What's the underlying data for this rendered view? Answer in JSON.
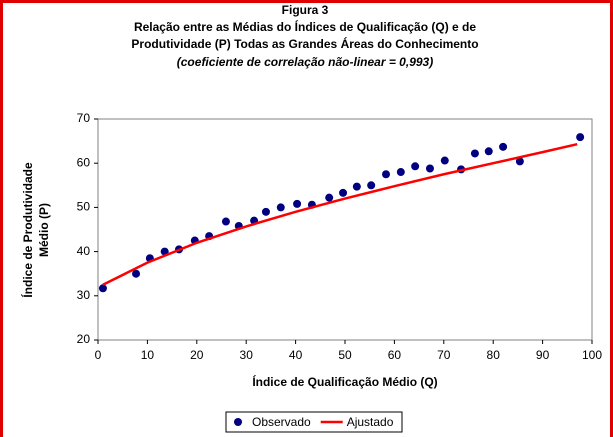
{
  "chart_data": {
    "type": "scatter",
    "title": "Figura 3",
    "subtitle": [
      "Relação entre as Médias do Índices de Qualificação (Q) e de",
      "Produtividade (P) Todas as Grandes Áreas do Conhecimento",
      "(coeficiente de correlação não-linear = 0,993)"
    ],
    "x_label": "Índice de Qualificação  Médio (Q)",
    "y_label": [
      "Índice de Produtividade",
      "Médio (P)"
    ],
    "xlim": [
      0,
      100
    ],
    "xticks": [
      0,
      10,
      20,
      30,
      40,
      50,
      60,
      70,
      80,
      90,
      100
    ],
    "ylim": [
      20,
      70
    ],
    "yticks": [
      20,
      30,
      40,
      50,
      60,
      70
    ],
    "legend": "bottom",
    "series": [
      {
        "name": "Observado",
        "color": "#000080",
        "kind": "points",
        "x": [
          1,
          7.7,
          10.5,
          13.5,
          16.4,
          19.6,
          22.5,
          25.9,
          28.5,
          31.6,
          34,
          37,
          40.3,
          43.3,
          46.8,
          49.6,
          52.4,
          55.3,
          58.3,
          61.3,
          64.2,
          67.2,
          70.2,
          73.5,
          76.3,
          79.1,
          82,
          85.4,
          97.6
        ],
        "values": [
          31.7,
          35,
          38.5,
          40,
          40.5,
          42.5,
          43.5,
          46.8,
          45.8,
          47,
          49,
          50,
          50.8,
          50.6,
          52.2,
          53.3,
          54.7,
          55,
          57.5,
          58,
          59.3,
          58.8,
          60.6,
          58.6,
          62.2,
          62.7,
          63.7,
          60.4,
          65.9
        ]
      },
      {
        "name": "Ajustado",
        "color": "#ff0000",
        "kind": "line",
        "x": [
          1,
          10,
          20,
          30,
          40,
          50,
          60,
          70,
          80,
          90,
          97
        ],
        "values": [
          32.5,
          37.5,
          42,
          45.7,
          49,
          52,
          54.8,
          57.5,
          60,
          62.5,
          64.3
        ]
      }
    ]
  }
}
